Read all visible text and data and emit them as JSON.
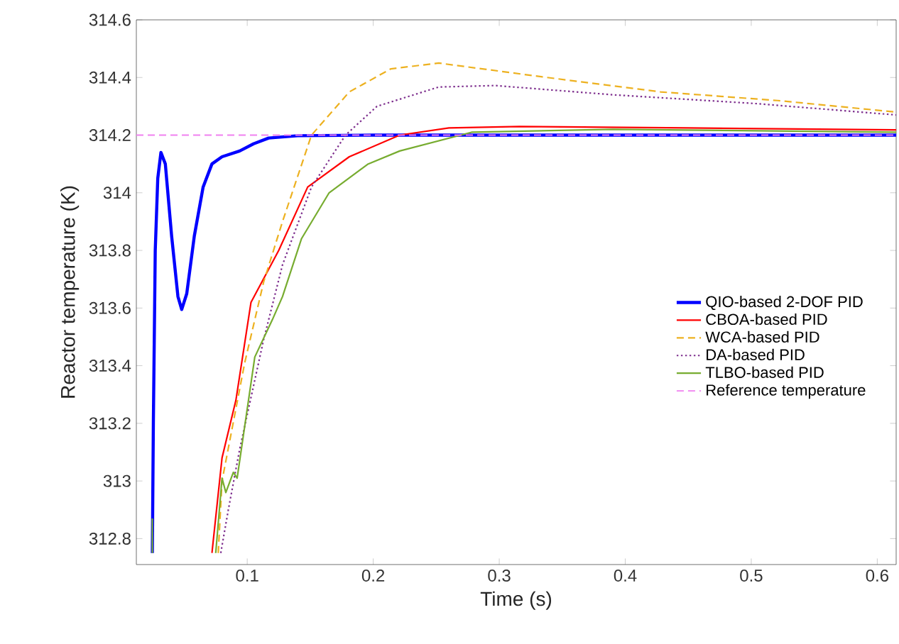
{
  "chart_data": {
    "type": "line",
    "xlabel": "Time (s)",
    "ylabel": "Reactor temperature (K)",
    "xlim": [
      0.012,
      0.615
    ],
    "ylim": [
      312.71,
      314.6
    ],
    "xticks": [
      0.1,
      0.2,
      0.3,
      0.4,
      0.5,
      0.6
    ],
    "yticks": [
      312.8,
      313,
      313.2,
      313.4,
      313.6,
      313.8,
      314,
      314.2,
      314.4,
      314.6
    ],
    "legend": "right",
    "grid": false,
    "marker": "none",
    "series": [
      {
        "name": "QIO-based 2-DOF PID",
        "color": "#0000ff",
        "line_style": "solid",
        "x": [
          0.0247,
          0.0255,
          0.027,
          0.029,
          0.0315,
          0.035,
          0.04,
          0.045,
          0.048,
          0.052,
          0.058,
          0.065,
          0.072,
          0.08,
          0.094,
          0.105,
          0.117,
          0.14,
          0.2,
          0.615
        ],
        "values": [
          312.75,
          313.2,
          313.8,
          314.05,
          314.14,
          314.1,
          313.85,
          313.64,
          313.595,
          313.65,
          313.85,
          314.02,
          314.1,
          314.125,
          314.145,
          314.17,
          314.19,
          314.198,
          314.2,
          314.2
        ]
      },
      {
        "name": "CBOA-based PID",
        "color": "#ff0000",
        "line_style": "solid",
        "x": [
          0.072,
          0.08,
          0.091,
          0.103,
          0.125,
          0.148,
          0.181,
          0.221,
          0.26,
          0.316,
          0.45,
          0.615
        ],
        "values": [
          312.75,
          313.08,
          313.28,
          313.62,
          313.8,
          314.02,
          314.125,
          314.2,
          314.225,
          314.23,
          314.225,
          314.218
        ]
      },
      {
        "name": "WCA-based PID",
        "color": "#edb120",
        "line_style": "dashed",
        "x": [
          0.077,
          0.08,
          0.098,
          0.113,
          0.128,
          0.151,
          0.181,
          0.214,
          0.252,
          0.338,
          0.428,
          0.521,
          0.615
        ],
        "values": [
          312.75,
          313.0,
          313.41,
          313.69,
          313.9,
          314.2,
          314.35,
          314.43,
          314.45,
          314.4,
          314.35,
          314.32,
          314.28
        ]
      },
      {
        "name": "DA-based PID",
        "color": "#7e2f8e",
        "line_style": "dotted",
        "x": [
          0.079,
          0.085,
          0.094,
          0.113,
          0.128,
          0.151,
          0.178,
          0.203,
          0.252,
          0.297,
          0.39,
          0.502,
          0.615
        ],
        "values": [
          312.75,
          312.9,
          313.11,
          313.49,
          313.75,
          314.02,
          314.2,
          314.3,
          314.367,
          314.372,
          314.34,
          314.31,
          314.27
        ]
      },
      {
        "name": "TLBO-based PID",
        "color": "#77ac30",
        "line_style": "solid",
        "x": [
          0.0247,
          0.0247,
          0.05,
          0.075,
          0.08,
          0.083,
          0.089,
          0.092,
          0.106,
          0.12,
          0.128,
          0.143,
          0.165,
          0.196,
          0.221,
          0.278,
          0.39,
          0.615
        ],
        "values": [
          312.75,
          312.87,
          null,
          312.75,
          313.01,
          312.96,
          313.03,
          313.01,
          313.43,
          313.56,
          313.64,
          313.84,
          314.0,
          314.1,
          314.145,
          314.21,
          314.22,
          314.21
        ]
      }
    ],
    "ref_lines": [
      {
        "axis": "y",
        "value": 314.2,
        "label": "Reference temperature",
        "color": "#f080f0",
        "line_style": "dashed"
      }
    ]
  }
}
